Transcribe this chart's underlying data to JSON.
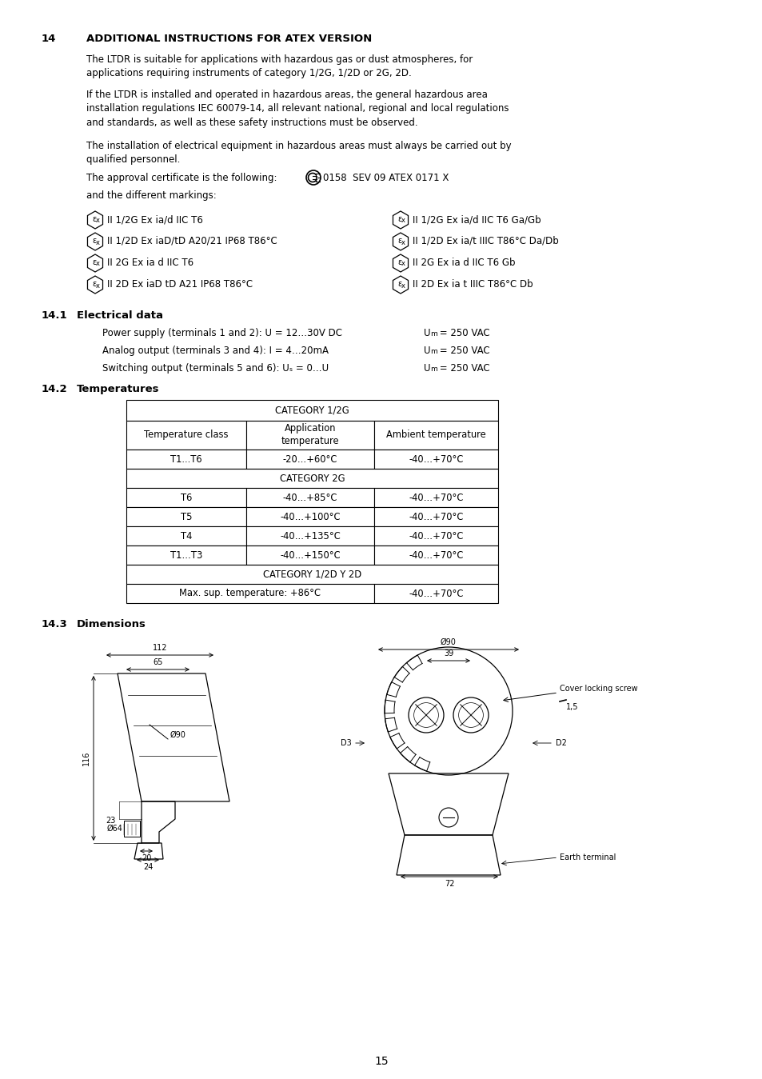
{
  "page_num": "15",
  "bg_color": "#ffffff",
  "text_color": "#000000",
  "sec14_num": "14",
  "sec14_title": "ADDITIONAL INSTRUCTIONS FOR ATEX VERSION",
  "para1": "The LTDR is suitable for applications with hazardous gas or dust atmospheres, for\napplications requiring instruments of category 1/2G, 1/2D or 2G, 2D.",
  "para2": "If the LTDR is installed and operated in hazardous areas, the general hazardous area\ninstallation regulations IEC 60079-14, all relevant national, regional and local regulations\nand standards, as well as these safety instructions must be observed.",
  "para3": "The installation of electrical equipment in hazardous areas must always be carried out by\nqualified personnel.",
  "para4_prefix": "The approval certificate is the following:  É0158  SEV 09 ATEX 0171 X",
  "para5": "and the different markings:",
  "markings_left": [
    "II 1/2G Ex ia/d IIC T6",
    "II 1/2D Ex iaD/tD A20/21 IP68 T86°C",
    "II 2G Ex ia d IIC T6",
    "II 2D Ex iaD tD A21 IP68 T86°C"
  ],
  "markings_right": [
    "II 1/2G Ex ia/d IIC T6 Ga/Gb",
    "II 1/2D Ex ia/t IIIC T86°C Da/Db",
    "II 2G Ex ia d IIC T6 Gb",
    "II 2D Ex ia t IIIC T86°C Db"
  ],
  "sec141_num": "14.1",
  "sec141_title": "Electrical data",
  "elec_left": [
    "Power supply (terminals 1 and 2): U = 12…30V DC",
    "Analog output (terminals 3 and 4): I = 4…20mA",
    "Switching output (terminals 5 and 6): Uₛ = 0…U"
  ],
  "elec_right": [
    "Uₘ = 250 VAC",
    "Uₘ = 250 VAC",
    "Uₘ = 250 VAC"
  ],
  "sec142_num": "14.2",
  "sec142_title": "Temperatures",
  "table_col_headers": [
    "Temperature class",
    "Application\ntemperature",
    "Ambient temperature"
  ],
  "table_rows_2G": [
    [
      "T6",
      "-40…+85°C",
      "-40…+70°C"
    ],
    [
      "T5",
      "-40…+100°C",
      "-40…+70°C"
    ],
    [
      "T4",
      "-40…+135°C",
      "-40…+70°C"
    ],
    [
      "T1…T3",
      "-40…+150°C",
      "-40…+70°C"
    ]
  ],
  "sec143_num": "14.3",
  "sec143_title": "Dimensions"
}
